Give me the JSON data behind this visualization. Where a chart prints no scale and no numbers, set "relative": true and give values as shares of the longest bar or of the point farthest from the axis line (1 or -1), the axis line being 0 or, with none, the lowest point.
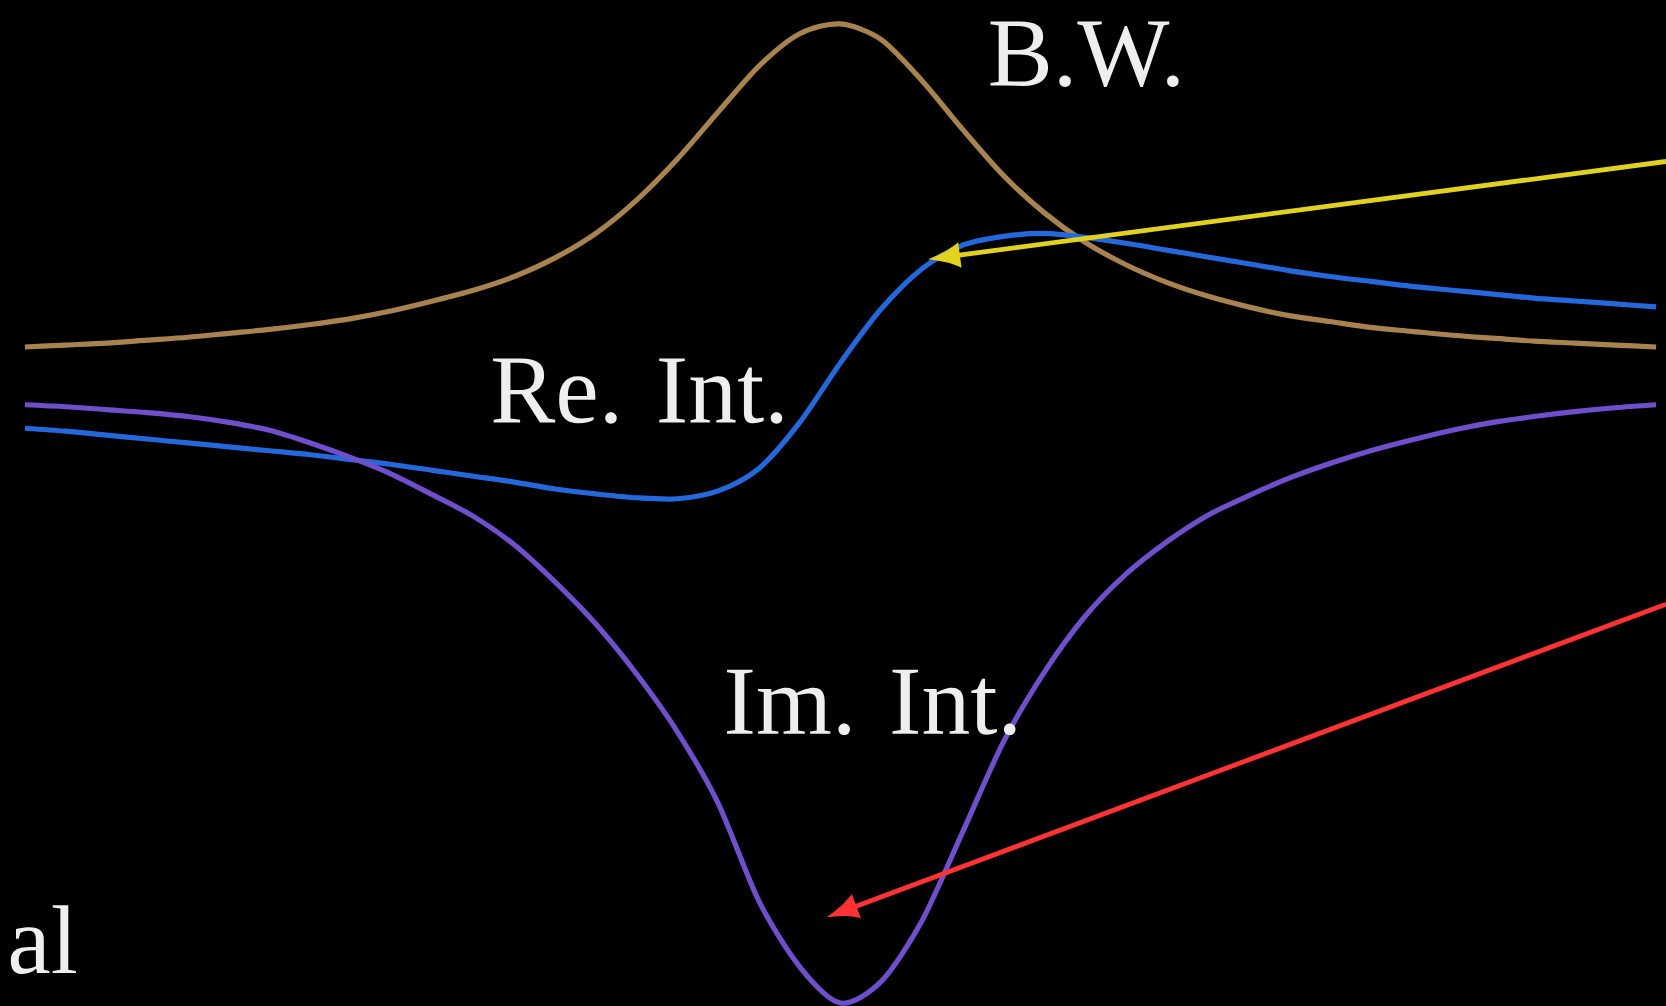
{
  "chart_data": {
    "type": "line",
    "relative": true,
    "categories": [
      null,
      null,
      null,
      null,
      null,
      null,
      null,
      null,
      null,
      null,
      null,
      null,
      null,
      null,
      null,
      null,
      null,
      null,
      null,
      null,
      null,
      null,
      null,
      null,
      null,
      null,
      null,
      null,
      null,
      null,
      null,
      null,
      null,
      null,
      null,
      null,
      null,
      null,
      null,
      null,
      null
    ],
    "series": [
      {
        "name": "B.W.",
        "color": "#a8834f",
        "values": [
          0.67,
          0.672,
          0.674,
          0.677,
          0.68,
          0.684,
          0.688,
          0.693,
          0.699,
          0.707,
          0.717,
          0.728,
          0.742,
          0.761,
          0.786,
          0.82,
          0.862,
          0.91,
          0.957,
          0.99,
          1.0,
          0.984,
          0.942,
          0.892,
          0.845,
          0.807,
          0.777,
          0.754,
          0.736,
          0.722,
          0.711,
          0.702,
          0.696,
          0.69,
          0.686,
          0.682,
          0.679,
          0.676,
          0.674,
          0.672,
          0.67
        ]
      },
      {
        "name": "Re. Int.",
        "color": "#2468dc",
        "values": [
          0.587,
          0.584,
          0.58,
          0.576,
          0.572,
          0.568,
          0.564,
          0.56,
          0.555,
          0.55,
          0.544,
          0.538,
          0.532,
          0.525,
          0.52,
          0.516,
          0.515,
          0.523,
          0.546,
          0.593,
          0.654,
          0.709,
          0.75,
          0.774,
          0.783,
          0.786,
          0.782,
          0.776,
          0.769,
          0.762,
          0.755,
          0.748,
          0.742,
          0.737,
          0.732,
          0.728,
          0.724,
          0.72,
          0.717,
          0.714,
          0.711
        ]
      },
      {
        "name": "Im. Int.",
        "color": "#6f4fcb",
        "values": [
          0.611,
          0.609,
          0.606,
          0.603,
          0.599,
          0.593,
          0.585,
          0.572,
          0.557,
          0.54,
          0.519,
          0.497,
          0.468,
          0.43,
          0.387,
          0.336,
          0.277,
          0.204,
          0.104,
          0.037,
          0.0,
          0.022,
          0.084,
          0.175,
          0.267,
          0.338,
          0.395,
          0.438,
          0.471,
          0.498,
          0.518,
          0.536,
          0.551,
          0.564,
          0.575,
          0.585,
          0.593,
          0.599,
          0.604,
          0.608,
          0.611
        ]
      }
    ],
    "annotations": [
      "al"
    ]
  }
}
